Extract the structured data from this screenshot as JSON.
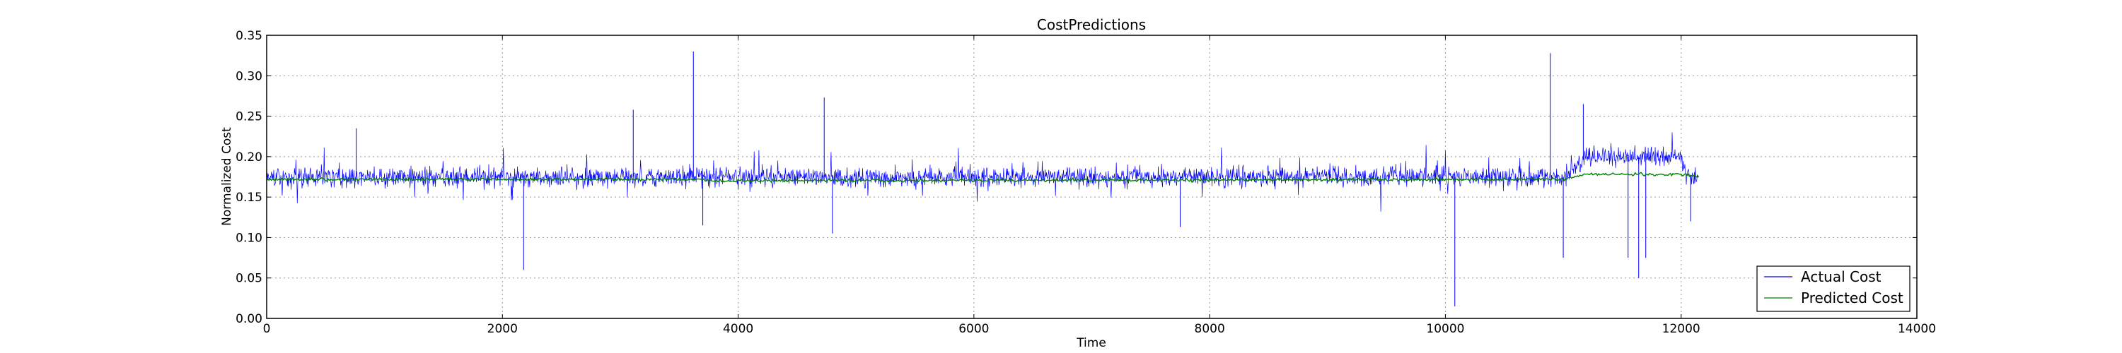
{
  "chart_data": {
    "type": "line",
    "title": "CostPredictions",
    "xlabel": "Time",
    "ylabel": "Normalized Cost",
    "xlim": [
      0,
      14000
    ],
    "ylim": [
      0.0,
      0.35
    ],
    "xticks": [
      0,
      2000,
      4000,
      6000,
      8000,
      10000,
      12000,
      14000
    ],
    "yticks": [
      0.0,
      0.05,
      0.1,
      0.15,
      0.2,
      0.25,
      0.3,
      0.35
    ],
    "xtick_labels": [
      "0",
      "2000",
      "4000",
      "6000",
      "8000",
      "10000",
      "12000",
      "14000"
    ],
    "ytick_labels": [
      "0.00",
      "0.05",
      "0.10",
      "0.15",
      "0.20",
      "0.25",
      "0.30",
      "0.35"
    ],
    "grid": true,
    "legend_position": "lower-right",
    "series": [
      {
        "name": "Actual Cost",
        "color": "#0000ff",
        "x_range": [
          0,
          12150
        ],
        "base_level": [
          [
            0,
            0.175
          ],
          [
            11000,
            0.175
          ],
          [
            11200,
            0.2
          ],
          [
            12000,
            0.2
          ],
          [
            12050,
            0.175
          ],
          [
            12150,
            0.175
          ]
        ],
        "spikes": [
          [
            760,
            0.235
          ],
          [
            2180,
            0.06
          ],
          [
            3110,
            0.258
          ],
          [
            3620,
            0.33
          ],
          [
            3700,
            0.115
          ],
          [
            4730,
            0.273
          ],
          [
            4800,
            0.105
          ],
          [
            7750,
            0.113
          ],
          [
            10080,
            0.015
          ],
          [
            10890,
            0.328
          ],
          [
            11000,
            0.075
          ],
          [
            11170,
            0.265
          ],
          [
            11550,
            0.075
          ],
          [
            11640,
            0.05
          ],
          [
            11700,
            0.075
          ],
          [
            12080,
            0.12
          ]
        ]
      },
      {
        "name": "Predicted Cost",
        "color": "#008000",
        "points": [
          [
            0,
            0.172
          ],
          [
            3700,
            0.172
          ],
          [
            3800,
            0.17
          ],
          [
            11000,
            0.172
          ],
          [
            11200,
            0.178
          ],
          [
            12000,
            0.178
          ],
          [
            12150,
            0.175
          ]
        ]
      }
    ]
  }
}
